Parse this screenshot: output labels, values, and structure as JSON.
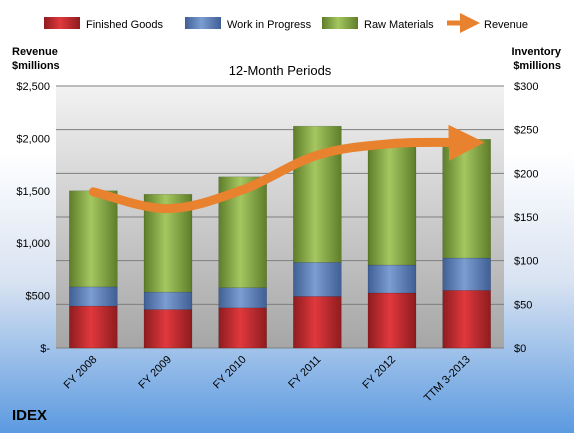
{
  "chart_data": {
    "type": "bar",
    "subtitle": "12-Month Periods",
    "brand": "IDEX",
    "left_axis_title": [
      "Revenue",
      "$millions"
    ],
    "right_axis_title": [
      "Inventory",
      "$millions"
    ],
    "categories": [
      "FY 2008",
      "FY 2009",
      "FY 2010",
      "FY 2011",
      "FY 2012",
      "TTM 3-2013"
    ],
    "y_left": {
      "min": 0,
      "max": 2500,
      "ticks": [
        0,
        500,
        1000,
        1500,
        2000,
        2500
      ],
      "tick_labels": [
        "$-",
        "$500",
        "$1,000",
        "$1,500",
        "$2,000",
        "$2,500"
      ]
    },
    "y_right": {
      "min": 0,
      "max": 300,
      "ticks": [
        0,
        50,
        100,
        150,
        200,
        250,
        300
      ],
      "tick_labels": [
        "$0",
        "$50",
        "$100",
        "$150",
        "$200",
        "$250",
        "$300"
      ]
    },
    "series": [
      {
        "name": "Finished Goods",
        "type": "bar",
        "axis": "right",
        "color": "#c0282d",
        "values": [
          48,
          44,
          46,
          59,
          63,
          66
        ]
      },
      {
        "name": "Work in Progress",
        "type": "bar",
        "axis": "right",
        "color": "#5b7fb8",
        "values": [
          22,
          20,
          23,
          39,
          32,
          37
        ]
      },
      {
        "name": "Raw Materials",
        "type": "bar",
        "axis": "right",
        "color": "#8db04a",
        "values": [
          110,
          112,
          127,
          156,
          139,
          136
        ]
      },
      {
        "name": "Revenue",
        "type": "line",
        "axis": "left",
        "color": "#e9822f",
        "values": [
          1490,
          1330,
          1510,
          1840,
          1950,
          1960
        ]
      }
    ],
    "legend_position": "top",
    "grid": true
  }
}
